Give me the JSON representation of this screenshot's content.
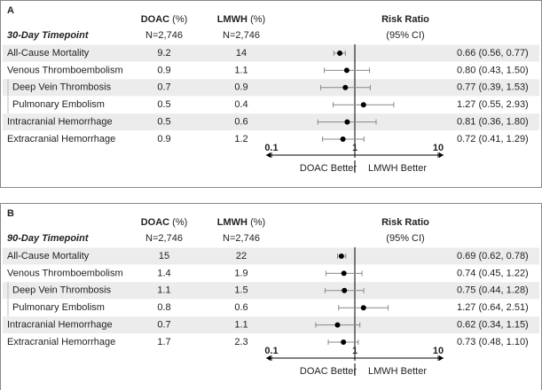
{
  "chart_data": [
    {
      "type": "forest",
      "panel": "A",
      "title": "30-Day Timepoint",
      "categories": [
        "All-Cause Mortality",
        "Venous Thromboembolism",
        "Deep Vein Thrombosis",
        "Pulmonary Embolism",
        "Intracranial Hemorrhage",
        "Extracranial Hemorrhage"
      ],
      "indent": [
        false,
        false,
        true,
        true,
        false,
        false
      ],
      "columns": [
        {
          "name": "DOAC",
          "unit": "(%)",
          "n_label": "N=2,746",
          "values": [
            9.2,
            0.9,
            0.7,
            0.5,
            0.5,
            0.9
          ]
        },
        {
          "name": "LMWH",
          "unit": "(%)",
          "n_label": "N=2,746",
          "values": [
            14,
            1.1,
            0.9,
            0.4,
            0.6,
            1.2
          ]
        }
      ],
      "value_header": "Risk Ratio",
      "value_subheader": "(95% CI)",
      "values": [
        0.66,
        0.8,
        0.77,
        1.27,
        0.81,
        0.72
      ],
      "ci_low": [
        0.56,
        0.43,
        0.39,
        0.55,
        0.36,
        0.41
      ],
      "ci_high": [
        0.77,
        1.5,
        1.53,
        2.93,
        1.8,
        1.29
      ],
      "value_labels": [
        "0.66 (0.56, 0.77)",
        "0.80 (0.43, 1.50)",
        "0.77 (0.39, 1.53)",
        "1.27 (0.55, 2.93)",
        "0.81 (0.36, 1.80)",
        "0.72 (0.41, 1.29)"
      ],
      "xlim": [
        0.1,
        10
      ],
      "xticks": [
        0.1,
        1,
        10
      ],
      "log_x": true,
      "direction_labels": [
        "DOAC Better",
        "LMWH Better"
      ],
      "color": "#000000"
    },
    {
      "type": "forest",
      "panel": "B",
      "title": "90-Day Timepoint",
      "categories": [
        "All-Cause Mortality",
        "Venous Thromboembolism",
        "Deep Vein Thrombosis",
        "Pulmonary Embolism",
        "Intracranial Hemorrhage",
        "Extracranial Hemorrhage"
      ],
      "indent": [
        false,
        false,
        true,
        true,
        false,
        false
      ],
      "columns": [
        {
          "name": "DOAC",
          "unit": "(%)",
          "n_label": "N=2,746",
          "values": [
            15,
            1.4,
            1.1,
            0.8,
            0.7,
            1.7
          ]
        },
        {
          "name": "LMWH",
          "unit": "(%)",
          "n_label": "N=2,746",
          "values": [
            22,
            1.9,
            1.5,
            0.6,
            1.1,
            2.3
          ]
        }
      ],
      "value_header": "Risk Ratio",
      "value_subheader": "(95% CI)",
      "values": [
        0.69,
        0.74,
        0.75,
        1.27,
        0.62,
        0.73
      ],
      "ci_low": [
        0.62,
        0.45,
        0.44,
        0.64,
        0.34,
        0.48
      ],
      "ci_high": [
        0.78,
        1.22,
        1.28,
        2.51,
        1.15,
        1.1
      ],
      "value_labels": [
        "0.69 (0.62, 0.78)",
        "0.74 (0.45, 1.22)",
        "0.75 (0.44, 1.28)",
        "1.27 (0.64, 2.51)",
        "0.62 (0.34, 1.15)",
        "0.73 (0.48, 1.10)"
      ],
      "xlim": [
        0.1,
        10
      ],
      "xticks": [
        0.1,
        1,
        10
      ],
      "log_x": true,
      "direction_labels": [
        "DOAC Better",
        "LMWH Better"
      ],
      "color": "#000000"
    }
  ]
}
